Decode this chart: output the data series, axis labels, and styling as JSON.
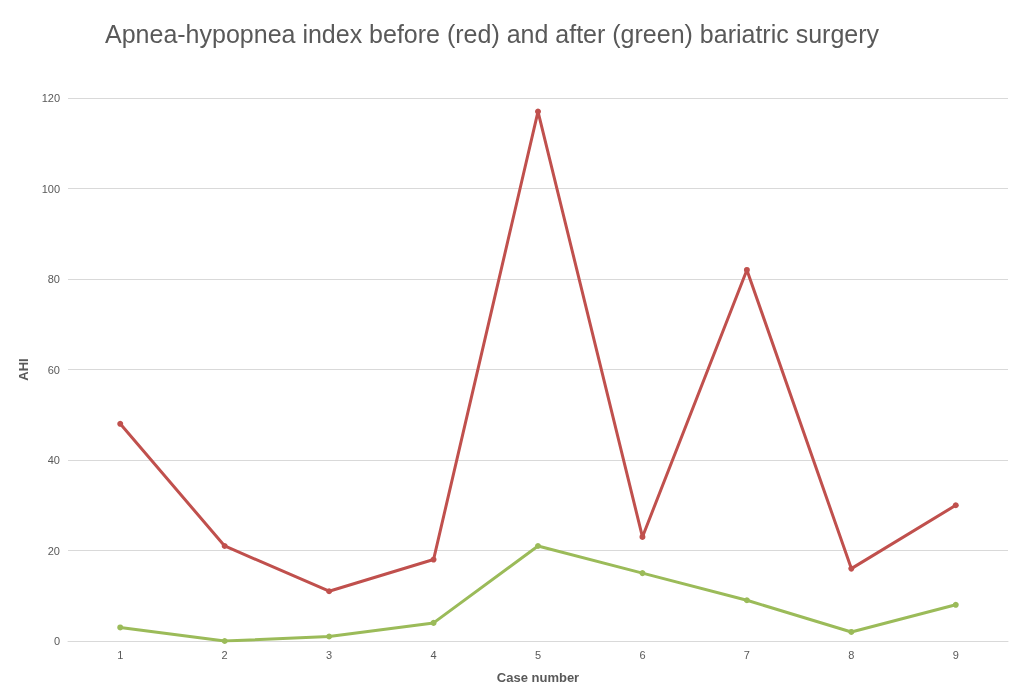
{
  "chart_data": {
    "type": "line",
    "title": "Apnea-hypopnea index before (red) and after (green) bariatric surgery",
    "xlabel": "Case number",
    "ylabel": "AHI",
    "categories": [
      "1",
      "2",
      "3",
      "4",
      "5",
      "6",
      "7",
      "8",
      "9"
    ],
    "series": [
      {
        "color": "#c0504d",
        "values": [
          48,
          21,
          11,
          18,
          117,
          23,
          82,
          16,
          30
        ]
      },
      {
        "color": "#9bbb59",
        "values": [
          3,
          0,
          1,
          4,
          21,
          15,
          9,
          2,
          8
        ]
      }
    ],
    "ylim": [
      0,
      120
    ],
    "yticks": [
      0,
      20,
      40,
      60,
      80,
      100,
      120
    ],
    "grid": "y",
    "marker": "circle",
    "line_style": "solid"
  }
}
